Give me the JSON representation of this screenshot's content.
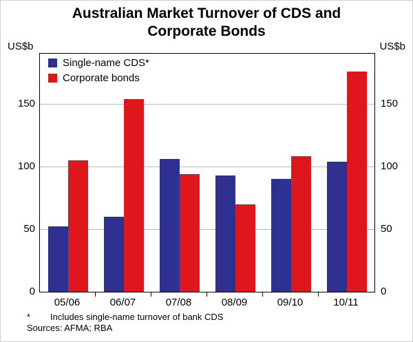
{
  "title": "Australian Market Turnover of CDS and Corporate Bonds",
  "y_unit_left": "US$b",
  "y_unit_right": "US$b",
  "legend": [
    {
      "label": "Single-name CDS*",
      "color": "#2e3192"
    },
    {
      "label": "Corporate bonds",
      "color": "#e0161d"
    }
  ],
  "footnote": {
    "marker": "*",
    "text": "Includes single-name turnover of bank CDS"
  },
  "sources_label": "Sources: AFMA; RBA",
  "chart_data": {
    "type": "bar",
    "title": "Australian Market Turnover of CDS and Corporate Bonds",
    "categories": [
      "05/06",
      "06/07",
      "07/08",
      "08/09",
      "09/10",
      "10/11"
    ],
    "series": [
      {
        "name": "Single-name CDS*",
        "color": "#2e3192",
        "values": [
          52,
          60,
          106,
          93,
          90,
          104
        ]
      },
      {
        "name": "Corporate bonds",
        "color": "#e0161d",
        "values": [
          105,
          154,
          94,
          70,
          108,
          176
        ]
      }
    ],
    "xlabel": "",
    "ylabel": "US$b",
    "ylim": [
      0,
      190
    ],
    "yticks": [
      0,
      50,
      100,
      150
    ],
    "grid": true,
    "legend_position": "top-left-inside"
  }
}
